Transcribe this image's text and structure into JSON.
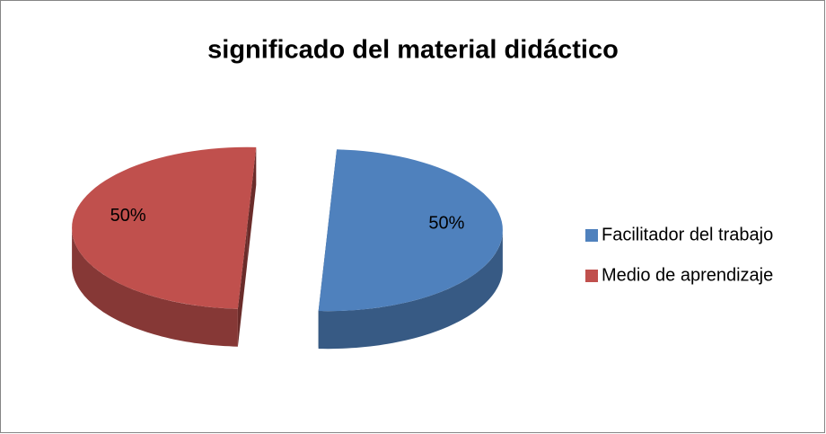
{
  "chart_data": {
    "type": "pie",
    "title": "significado del material didáctico",
    "categories": [
      "Facilitador del trabajo",
      "Medio de aprendizaje"
    ],
    "values": [
      50,
      50
    ],
    "value_labels": [
      "50%",
      "50%"
    ],
    "colors": [
      "#4f81bd",
      "#c0504d"
    ],
    "legend": "right"
  }
}
